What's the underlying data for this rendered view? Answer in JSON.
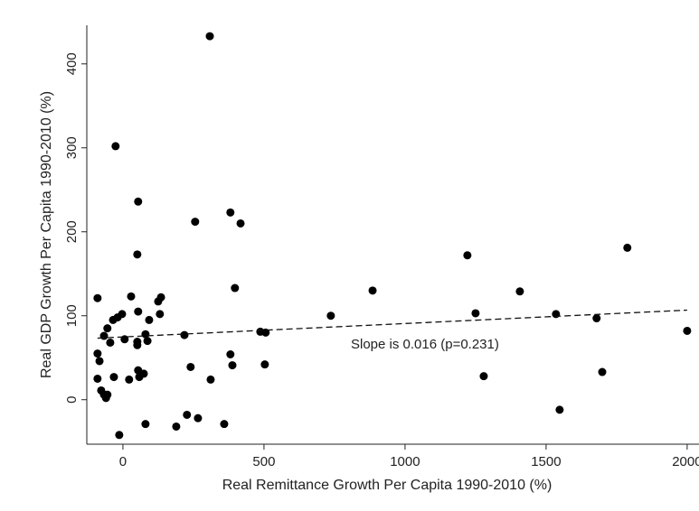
{
  "chart_data": {
    "type": "scatter",
    "xlabel": "Real Remittance Growth Per Capita 1990-2010 (%)",
    "ylabel": "Real GDP Growth Per Capita 1990-2010 (%)",
    "x": [
      308,
      -26,
      54,
      256,
      381,
      417,
      51,
      -90,
      29,
      125,
      135,
      131,
      54,
      -3,
      -19,
      -35,
      93,
      -55,
      -67,
      397,
      -45,
      6,
      51,
      51,
      80,
      87,
      218,
      -90,
      -83,
      381,
      487,
      506,
      388,
      503,
      240,
      54,
      74,
      58,
      22,
      -32,
      -90,
      311,
      -77,
      -67,
      -60,
      -55,
      80,
      -13,
      189,
      227,
      266,
      359,
      737,
      885,
      1221,
      1250,
      1279,
      1407,
      1535,
      1548,
      1679,
      1699,
      1788,
      2000
    ],
    "values": [
      433,
      302,
      236,
      212,
      223,
      210,
      173,
      121,
      123,
      117,
      122,
      102,
      105,
      102,
      98,
      95,
      95,
      85,
      76,
      133,
      68,
      72,
      69,
      65,
      78,
      70,
      77,
      55,
      46,
      54,
      81,
      80,
      41,
      42,
      39,
      35,
      31,
      27,
      24,
      27,
      25,
      24,
      11,
      6,
      2,
      6,
      -29,
      -42,
      -32,
      -18,
      -22,
      -29,
      100,
      130,
      172,
      103,
      28,
      129,
      102,
      -12,
      97,
      33,
      181,
      82
    ],
    "color": "#000000",
    "trend": {
      "x": [
        -90,
        2000
      ],
      "y": [
        73.3,
        106.7
      ]
    },
    "annotation": "Slope is 0.016 (p=0.231)",
    "xlim": [
      -128,
      2042
    ],
    "ylim": [
      -53,
      446
    ],
    "xticks": [
      0,
      500,
      1000,
      1500,
      2000
    ],
    "yticks": [
      0,
      100,
      200,
      300,
      400
    ]
  }
}
